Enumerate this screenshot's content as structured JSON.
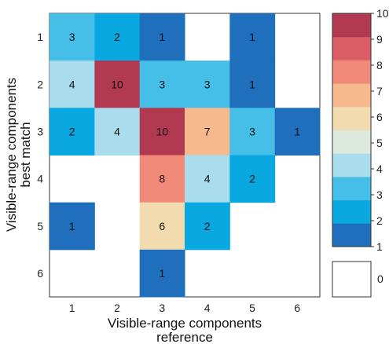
{
  "chart_data": {
    "type": "heatmap",
    "x_categories": [
      "1",
      "2",
      "3",
      "4",
      "5",
      "6"
    ],
    "y_categories": [
      "1",
      "2",
      "3",
      "4",
      "5",
      "6"
    ],
    "xlabel_line1": "Visible-range components",
    "xlabel_line2": "reference",
    "ylabel_line1": "Visible-range components",
    "ylabel_line2": "best match",
    "cells": [
      {
        "x": 1,
        "y": 1,
        "value": 3
      },
      {
        "x": 2,
        "y": 1,
        "value": 2
      },
      {
        "x": 3,
        "y": 1,
        "value": 1
      },
      {
        "x": 5,
        "y": 1,
        "value": 1
      },
      {
        "x": 1,
        "y": 2,
        "value": 4
      },
      {
        "x": 2,
        "y": 2,
        "value": 10
      },
      {
        "x": 3,
        "y": 2,
        "value": 3
      },
      {
        "x": 4,
        "y": 2,
        "value": 3
      },
      {
        "x": 5,
        "y": 2,
        "value": 1
      },
      {
        "x": 1,
        "y": 3,
        "value": 2
      },
      {
        "x": 2,
        "y": 3,
        "value": 4
      },
      {
        "x": 3,
        "y": 3,
        "value": 10
      },
      {
        "x": 4,
        "y": 3,
        "value": 7
      },
      {
        "x": 5,
        "y": 3,
        "value": 3
      },
      {
        "x": 6,
        "y": 3,
        "value": 1
      },
      {
        "x": 3,
        "y": 4,
        "value": 8
      },
      {
        "x": 4,
        "y": 4,
        "value": 4
      },
      {
        "x": 5,
        "y": 4,
        "value": 2
      },
      {
        "x": 1,
        "y": 5,
        "value": 1
      },
      {
        "x": 3,
        "y": 5,
        "value": 6
      },
      {
        "x": 4,
        "y": 5,
        "value": 2
      },
      {
        "x": 3,
        "y": 6,
        "value": 1
      }
    ],
    "colorbar": {
      "ticks": [
        "1",
        "2",
        "3",
        "4",
        "5",
        "6",
        "7",
        "8",
        "9",
        "10"
      ],
      "zero_label": "0",
      "colors": [
        "#1f6fbd",
        "#0aa8e0",
        "#45bfe8",
        "#a9dcec",
        "#dde9dc",
        "#f3dbb0",
        "#f6b98e",
        "#f28a7a",
        "#db5d66",
        "#b23a50"
      ],
      "zero_color": "#ffffff"
    }
  }
}
